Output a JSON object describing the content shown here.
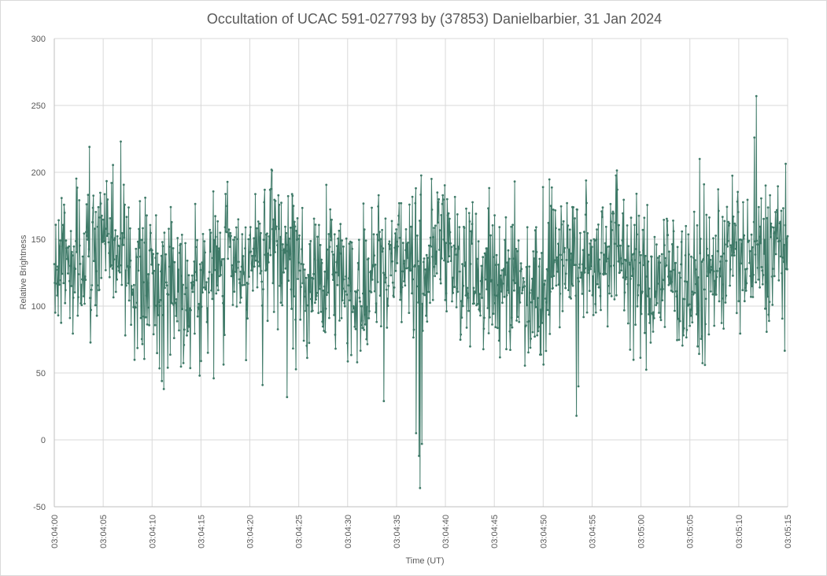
{
  "chart_data": {
    "type": "line",
    "title": "Occultation of UCAC 591-027793 by (37853) Danielbarbier, 31 Jan 2024",
    "xlabel": "Time (UT)",
    "ylabel": "Relative Brightness",
    "ylim": [
      -50,
      300
    ],
    "yticks": [
      -50,
      0,
      50,
      100,
      150,
      200,
      250,
      300
    ],
    "xlim_seconds_past_030400": [
      0,
      75
    ],
    "xticks": [
      "03:04:00",
      "03:04:05",
      "03:04:10",
      "03:04:15",
      "03:04:20",
      "03:04:25",
      "03:04:30",
      "03:04:35",
      "03:04:40",
      "03:04:45",
      "03:04:50",
      "03:04:55",
      "03:05:00",
      "03:05:05",
      "03:05:10",
      "03:05:15"
    ],
    "grid": true,
    "legend": "none",
    "marker": "small dot",
    "series_color": "#3f7a68",
    "series": [
      {
        "points_summary": "dense noisy light curve, ~1500 samples, mean about 125-130, spread roughly 40-220",
        "x_units": "seconds past 03:04:00",
        "key_points": [
          {
            "x": 11.0,
            "y": 44,
            "note": "local dip"
          },
          {
            "x": 11.2,
            "y": 38
          },
          {
            "x": 16.3,
            "y": 46
          },
          {
            "x": 21.3,
            "y": 41
          },
          {
            "x": 23.8,
            "y": 32
          },
          {
            "x": 33.7,
            "y": 29
          },
          {
            "x": 37.0,
            "y": 5
          },
          {
            "x": 37.3,
            "y": -12
          },
          {
            "x": 37.4,
            "y": -36,
            "note": "occultation minimum"
          },
          {
            "x": 37.6,
            "y": -3
          },
          {
            "x": 53.4,
            "y": 18
          },
          {
            "x": 53.6,
            "y": 40
          },
          {
            "x": 6.8,
            "y": 223
          },
          {
            "x": 3.6,
            "y": 219
          },
          {
            "x": 71.6,
            "y": 226
          },
          {
            "x": 71.8,
            "y": 257,
            "note": "highest spike"
          },
          {
            "x": 66.0,
            "y": 210
          }
        ]
      }
    ]
  }
}
